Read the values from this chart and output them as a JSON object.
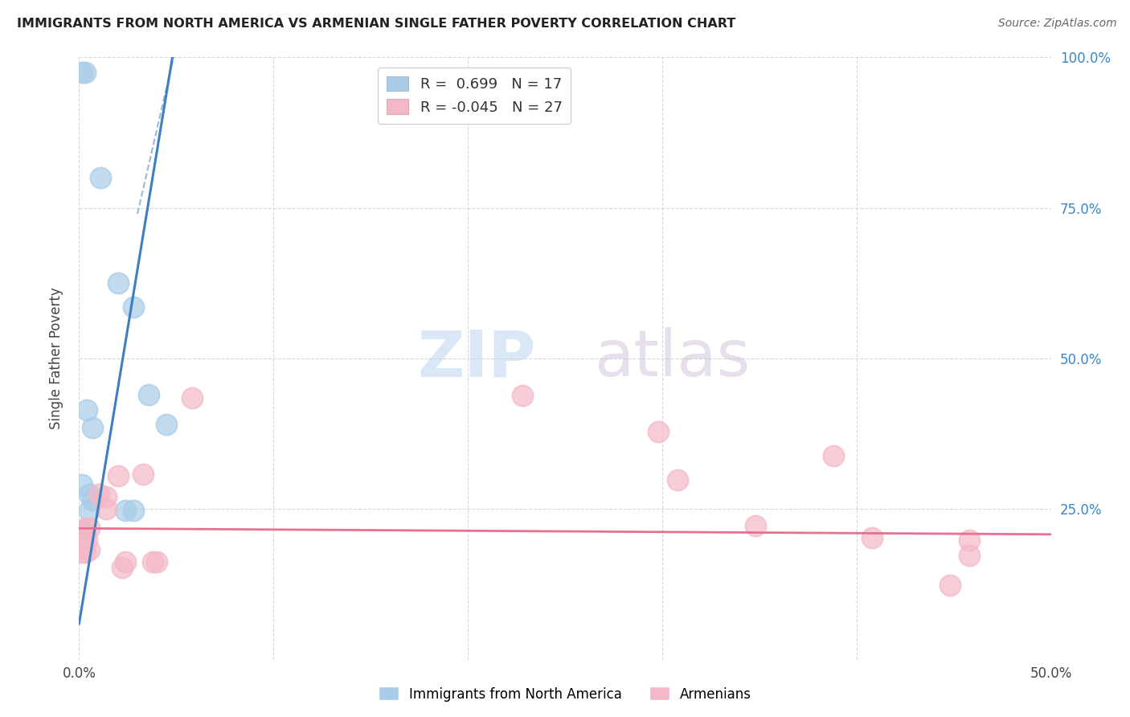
{
  "title": "IMMIGRANTS FROM NORTH AMERICA VS ARMENIAN SINGLE FATHER POVERTY CORRELATION CHART",
  "source": "Source: ZipAtlas.com",
  "ylabel": "Single Father Poverty",
  "xlim": [
    0.0,
    0.5
  ],
  "ylim": [
    0.0,
    1.0
  ],
  "legend_r_blue": "R =  0.699",
  "legend_n_blue": "N = 17",
  "legend_r_pink": "R = -0.045",
  "legend_n_pink": "N = 27",
  "blue_scatter": [
    [
      0.0015,
      0.975
    ],
    [
      0.003,
      0.975
    ],
    [
      0.011,
      0.8
    ],
    [
      0.02,
      0.625
    ],
    [
      0.028,
      0.585
    ],
    [
      0.036,
      0.44
    ],
    [
      0.004,
      0.415
    ],
    [
      0.007,
      0.385
    ],
    [
      0.045,
      0.39
    ],
    [
      0.0015,
      0.29
    ],
    [
      0.005,
      0.275
    ],
    [
      0.007,
      0.265
    ],
    [
      0.005,
      0.248
    ],
    [
      0.024,
      0.248
    ],
    [
      0.028,
      0.248
    ],
    [
      0.0015,
      0.215
    ],
    [
      0.0025,
      0.215
    ]
  ],
  "pink_scatter": [
    [
      0.003,
      0.218
    ],
    [
      0.005,
      0.218
    ],
    [
      0.003,
      0.208
    ],
    [
      0.004,
      0.198
    ],
    [
      0.002,
      0.188
    ],
    [
      0.005,
      0.183
    ],
    [
      0.001,
      0.178
    ],
    [
      0.003,
      0.178
    ],
    [
      0.01,
      0.275
    ],
    [
      0.014,
      0.27
    ],
    [
      0.014,
      0.25
    ],
    [
      0.02,
      0.305
    ],
    [
      0.033,
      0.308
    ],
    [
      0.038,
      0.163
    ],
    [
      0.04,
      0.163
    ],
    [
      0.022,
      0.153
    ],
    [
      0.024,
      0.163
    ],
    [
      0.058,
      0.435
    ],
    [
      0.228,
      0.438
    ],
    [
      0.298,
      0.378
    ],
    [
      0.308,
      0.298
    ],
    [
      0.348,
      0.223
    ],
    [
      0.388,
      0.338
    ],
    [
      0.408,
      0.203
    ],
    [
      0.448,
      0.123
    ],
    [
      0.458,
      0.198
    ],
    [
      0.458,
      0.173
    ]
  ],
  "blue_line": [
    [
      0.0,
      0.06
    ],
    [
      0.048,
      1.0
    ]
  ],
  "blue_line_dashed": [
    [
      0.03,
      0.74
    ],
    [
      0.05,
      1.02
    ]
  ],
  "pink_line": [
    [
      0.0,
      0.218
    ],
    [
      0.5,
      0.208
    ]
  ],
  "blue_color": "#3d7fc1",
  "pink_color": "#e87090",
  "scatter_blue_color": "#a8cce8",
  "scatter_pink_color": "#f4b8c8",
  "dashed_line_color": "#9ab8d8",
  "watermark_zip": "ZIP",
  "watermark_atlas": "atlas",
  "background_color": "#ffffff",
  "grid_color": "#d8d8d8"
}
